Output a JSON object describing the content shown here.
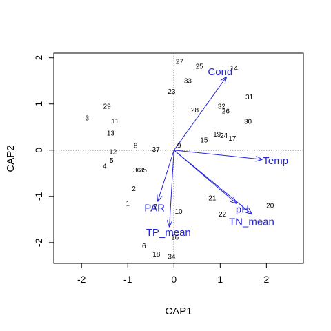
{
  "chart_data": {
    "type": "scatter",
    "title": "",
    "xlabel": "CAP1",
    "ylabel": "CAP2",
    "xlim": [
      -2.6,
      2.8
    ],
    "ylim": [
      -2.45,
      2.1
    ],
    "x_ticks": [
      -2,
      -1,
      0,
      1,
      2
    ],
    "y_ticks": [
      -2,
      -1,
      0,
      1,
      2
    ],
    "reference_lines": {
      "x": 0,
      "y": 0,
      "style": "dotted"
    },
    "grid": false,
    "legend": "none",
    "colors": {
      "points": "#000000",
      "vectors": "#2424d8"
    },
    "points": [
      {
        "label": "27",
        "x": 0.12,
        "y": 1.92
      },
      {
        "label": "25",
        "x": 0.55,
        "y": 1.82
      },
      {
        "label": "14",
        "x": 1.3,
        "y": 1.78
      },
      {
        "label": "33",
        "x": 0.3,
        "y": 1.5
      },
      {
        "label": "23",
        "x": -0.05,
        "y": 1.27
      },
      {
        "label": "31",
        "x": 1.63,
        "y": 1.15
      },
      {
        "label": "29",
        "x": -1.45,
        "y": 0.95
      },
      {
        "label": "32",
        "x": 1.03,
        "y": 0.95
      },
      {
        "label": "28",
        "x": 0.45,
        "y": 0.87
      },
      {
        "label": "26",
        "x": 1.12,
        "y": 0.85
      },
      {
        "label": "3",
        "x": -1.88,
        "y": 0.7
      },
      {
        "label": "11",
        "x": -1.27,
        "y": 0.63
      },
      {
        "label": "30",
        "x": 1.6,
        "y": 0.62
      },
      {
        "label": "13",
        "x": -1.37,
        "y": 0.37
      },
      {
        "label": "19",
        "x": 0.93,
        "y": 0.35
      },
      {
        "label": "24",
        "x": 1.08,
        "y": 0.32
      },
      {
        "label": "17",
        "x": 1.26,
        "y": 0.26
      },
      {
        "label": "15",
        "x": 0.65,
        "y": 0.22
      },
      {
        "label": "8",
        "x": -0.83,
        "y": 0.1
      },
      {
        "label": "9",
        "x": 0.11,
        "y": 0.1
      },
      {
        "label": "37",
        "x": -0.39,
        "y": 0.02
      },
      {
        "label": "12",
        "x": -1.32,
        "y": -0.03
      },
      {
        "label": "5",
        "x": -1.35,
        "y": -0.22
      },
      {
        "label": "4",
        "x": -1.5,
        "y": -0.35
      },
      {
        "label": "36",
        "x": -0.8,
        "y": -0.43
      },
      {
        "label": "35",
        "x": -0.67,
        "y": -0.43
      },
      {
        "label": "2",
        "x": -0.87,
        "y": -0.83
      },
      {
        "label": "21",
        "x": 0.83,
        "y": -1.03
      },
      {
        "label": "1",
        "x": -1.0,
        "y": -1.15
      },
      {
        "label": "20",
        "x": 2.08,
        "y": -1.2
      },
      {
        "label": "7",
        "x": -0.4,
        "y": -1.22
      },
      {
        "label": "10",
        "x": 0.1,
        "y": -1.32
      },
      {
        "label": "22",
        "x": 1.05,
        "y": -1.38
      },
      {
        "label": "16",
        "x": 0.02,
        "y": -1.88
      },
      {
        "label": "6",
        "x": -0.65,
        "y": -2.07
      },
      {
        "label": "18",
        "x": -0.38,
        "y": -2.25
      },
      {
        "label": "34",
        "x": -0.05,
        "y": -2.3
      }
    ],
    "vectors": [
      {
        "name": "Cond",
        "x": 1.13,
        "y": 1.58,
        "label_x": 1.0,
        "label_y": 1.7
      },
      {
        "name": "Temp",
        "x": 1.9,
        "y": -0.2,
        "label_x": 2.2,
        "label_y": -0.23
      },
      {
        "name": "pH",
        "x": 1.35,
        "y": -1.15,
        "label_x": 1.48,
        "label_y": -1.28
      },
      {
        "name": "TN_mean",
        "x": 1.68,
        "y": -1.38,
        "label_x": 1.68,
        "label_y": -1.55
      },
      {
        "name": "PAR",
        "x": -0.35,
        "y": -1.1,
        "label_x": -0.42,
        "label_y": -1.25
      },
      {
        "name": "TP_mean",
        "x": -0.1,
        "y": -1.65,
        "label_x": -0.12,
        "label_y": -1.78
      }
    ]
  }
}
